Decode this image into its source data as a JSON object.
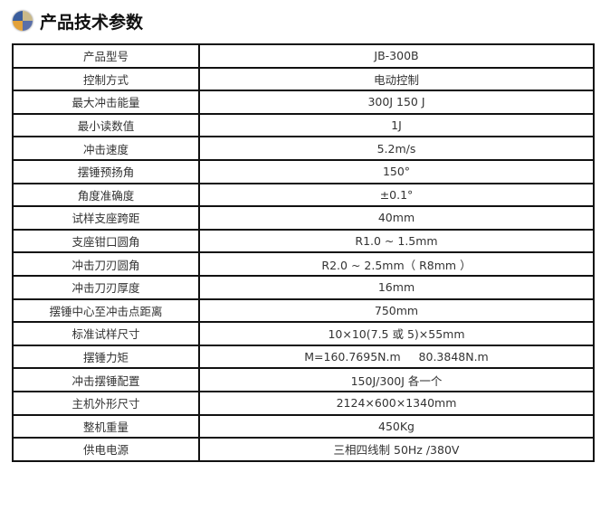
{
  "header": {
    "title": "产品技术参数",
    "icon": "quadrant-ball-icon",
    "icon_colors": [
      "#3a5d9c",
      "#c9b98a",
      "#e3a23a",
      "#5a6fa8"
    ]
  },
  "specs": [
    {
      "label": "产品型号",
      "value": "JB-300B"
    },
    {
      "label": "控制方式",
      "value": "电动控制"
    },
    {
      "label": "最大冲击能量",
      "value": "300J 150 J"
    },
    {
      "label": "最小读数值",
      "value": "1J"
    },
    {
      "label": "冲击速度",
      "value": "5.2m/s"
    },
    {
      "label": "摆锤预扬角",
      "value": "150°"
    },
    {
      "label": "角度准确度",
      "value": "±0.1°"
    },
    {
      "label": "试样支座跨距",
      "value": "40mm"
    },
    {
      "label": "支座钳口圆角",
      "value": "R1.0 ~ 1.5mm"
    },
    {
      "label": "冲击刀刃圆角",
      "value": "R2.0 ~ 2.5mm（ R8mm ）"
    },
    {
      "label": "冲击刀刃厚度",
      "value": "16mm"
    },
    {
      "label": "摆锤中心至冲击点距离",
      "value": "750mm"
    },
    {
      "label": "标准试样尺寸",
      "value": "10×10(7.5 或 5)×55mm"
    },
    {
      "label": "摆锤力矩",
      "value": "M=160.7695N.m     80.3848N.m"
    },
    {
      "label": "冲击摆锤配置",
      "value": "150J/300J 各一个"
    },
    {
      "label": "主机外形尺寸",
      "value": "2124×600×1340mm"
    },
    {
      "label": "整机重量",
      "value": "450Kg"
    },
    {
      "label": "供电电源",
      "value": "三相四线制 50Hz /380V"
    }
  ]
}
